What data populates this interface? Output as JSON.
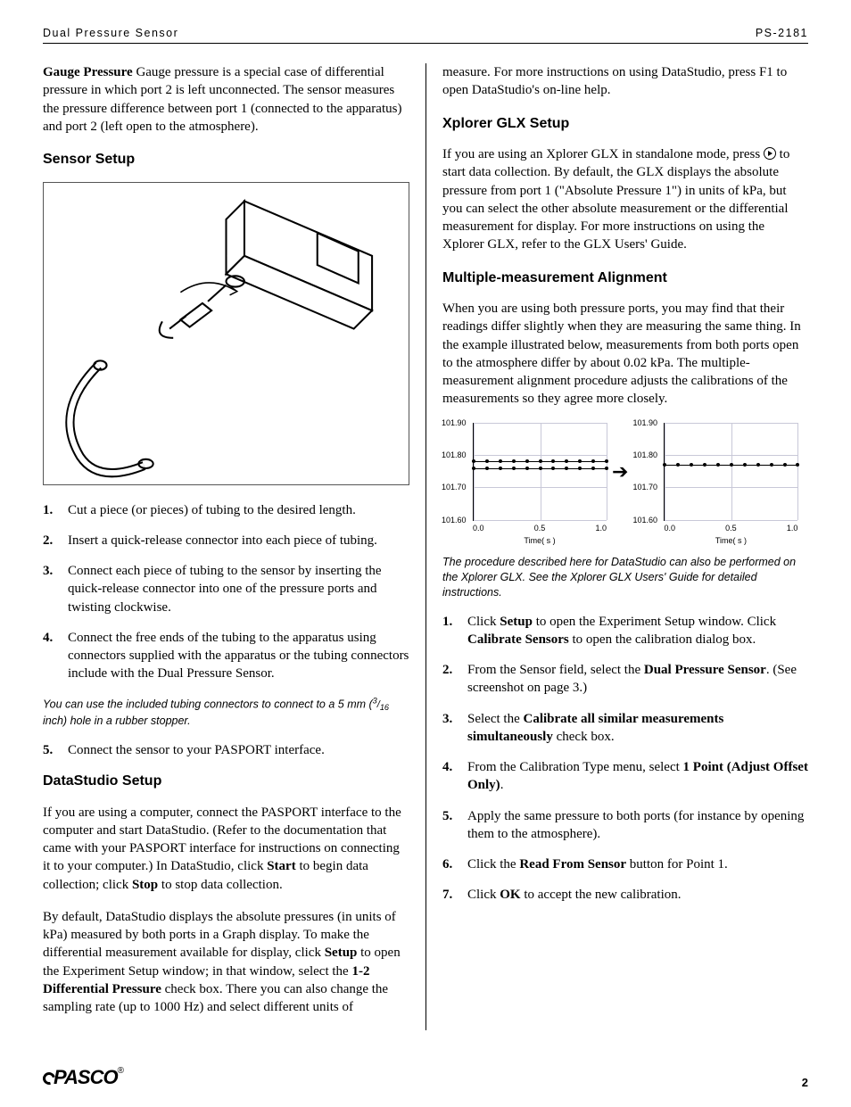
{
  "header": {
    "left": "Dual Pressure Sensor",
    "right": "PS-2181"
  },
  "left": {
    "gauge": {
      "lead": "Gauge Pressure",
      "body": "   Gauge pressure is a special case of differential pressure in which port 2 is left unconnected. The sensor measures the pressure difference between port 1 (connected to the apparatus) and port 2 (left open to the atmosphere)."
    },
    "sensor_setup_h": "Sensor Setup",
    "steps_a": [
      "Cut a piece (or pieces) of tubing to the desired length.",
      "Insert a quick-release connector into each piece of tubing.",
      "Connect each piece of tubing to the sensor by inserting the quick-release connector into one of the pressure ports and twisting clockwise.",
      "Connect the free ends of the tubing to the apparatus using connectors supplied with the apparatus or the tubing connectors include with the Dual Pressure Sensor."
    ],
    "note_a_pre": "You can use the included tubing connectors to connect to a 5 mm (",
    "note_a_frac_num": "3",
    "note_a_frac_slash": "/",
    "note_a_frac_den": "16",
    "note_a_post": " inch) hole in a rubber stopper.",
    "step5": "Connect the sensor to your PASPORT interface.",
    "ds_h": "DataStudio Setup",
    "ds_p1_a": "If you are using a computer, connect the PASPORT interface to the computer and start DataStudio. (Refer to the documentation that came with your PASPORT interface for instructions on connecting it to your computer.) In DataStudio, click ",
    "ds_p1_start": "Start",
    "ds_p1_b": " to begin data collection; click ",
    "ds_p1_stop": "Stop",
    "ds_p1_c": " to stop data collection.",
    "ds_p2_a": "By default, DataStudio displays the absolute pressures (in units of kPa) measured by both ports in a Graph display. To make the differential measurement available for display, click ",
    "ds_p2_setup": "Setup",
    "ds_p2_b": " to open the Experiment Setup window; in that window, select the ",
    "ds_p2_chk": "1-2 Differential Pressure",
    "ds_p2_c": " check box. There you can also change the sampling rate (up to 1000 Hz) and select different units of"
  },
  "right": {
    "cont": "measure. For more instructions on using DataStudio, press F1 to open DataStudio's on-line help.",
    "glx_h": "Xplorer GLX Setup",
    "glx_p_a": "If you are using an Xplorer GLX in standalone mode, press ",
    "glx_p_b": " to start data collection. By default, the GLX displays the absolute pressure from port 1 (\"Absolute Pressure 1\") in units of kPa, but you can select the other absolute measurement or the differential measurement for display. For more instructions on using the Xplorer GLX, refer to the GLX Users' Guide.",
    "mm_h": "Multiple-measurement Alignment",
    "mm_p": "When you are using both pressure ports, you may find that their readings differ slightly when they are measuring the same thing. In the example illustrated below, measurements from both ports open to the atmosphere differ by about 0.02 kPa. The multiple-measurement alignment procedure adjusts the calibrations of the measurements so they agree more closely.",
    "chart": {
      "type": "line",
      "yticks": [
        "101.90",
        "101.80",
        "101.70",
        "101.60"
      ],
      "ylim": [
        101.6,
        101.9
      ],
      "xticks": [
        "0.0",
        "0.5",
        "1.0"
      ],
      "xlabel": "Time( s )",
      "grid_color": "#c8c8d8",
      "left_series_y": [
        101.78,
        101.76
      ],
      "right_series_y": [
        101.77
      ],
      "n_points": 11
    },
    "note_b": "The procedure described here for DataStudio can also be performed on the Xplorer GLX. See the Xplorer GLX Users' Guide for detailed instructions.",
    "steps_b": [
      {
        "pre": "Click ",
        "b1": "Setup",
        "mid": " to open the Experiment Setup window. Click ",
        "b2": "Calibrate Sensors",
        "post": " to open the calibration dialog box."
      },
      {
        "pre": "From the Sensor field, select the ",
        "b1": "Dual Pressure Sensor",
        "post": ". (See screenshot on page 3.)"
      },
      {
        "pre": "Select the ",
        "b1": "Calibrate all similar measurements simultaneously",
        "post": " check box."
      },
      {
        "pre": "From the Calibration Type menu, select ",
        "b1": "1 Point (Adjust Offset Only)",
        "post": "."
      },
      {
        "pre": "Apply the same pressure to both ports (for instance by opening them to the atmosphere).",
        "b1": "",
        "post": ""
      },
      {
        "pre": "Click the ",
        "b1": "Read From Sensor",
        "post": " button for Point 1."
      },
      {
        "pre": "Click ",
        "b1": "OK",
        "post": " to accept the new calibration."
      }
    ]
  },
  "footer": {
    "logo_a": "PASCO",
    "reg": "®",
    "page": "2"
  }
}
